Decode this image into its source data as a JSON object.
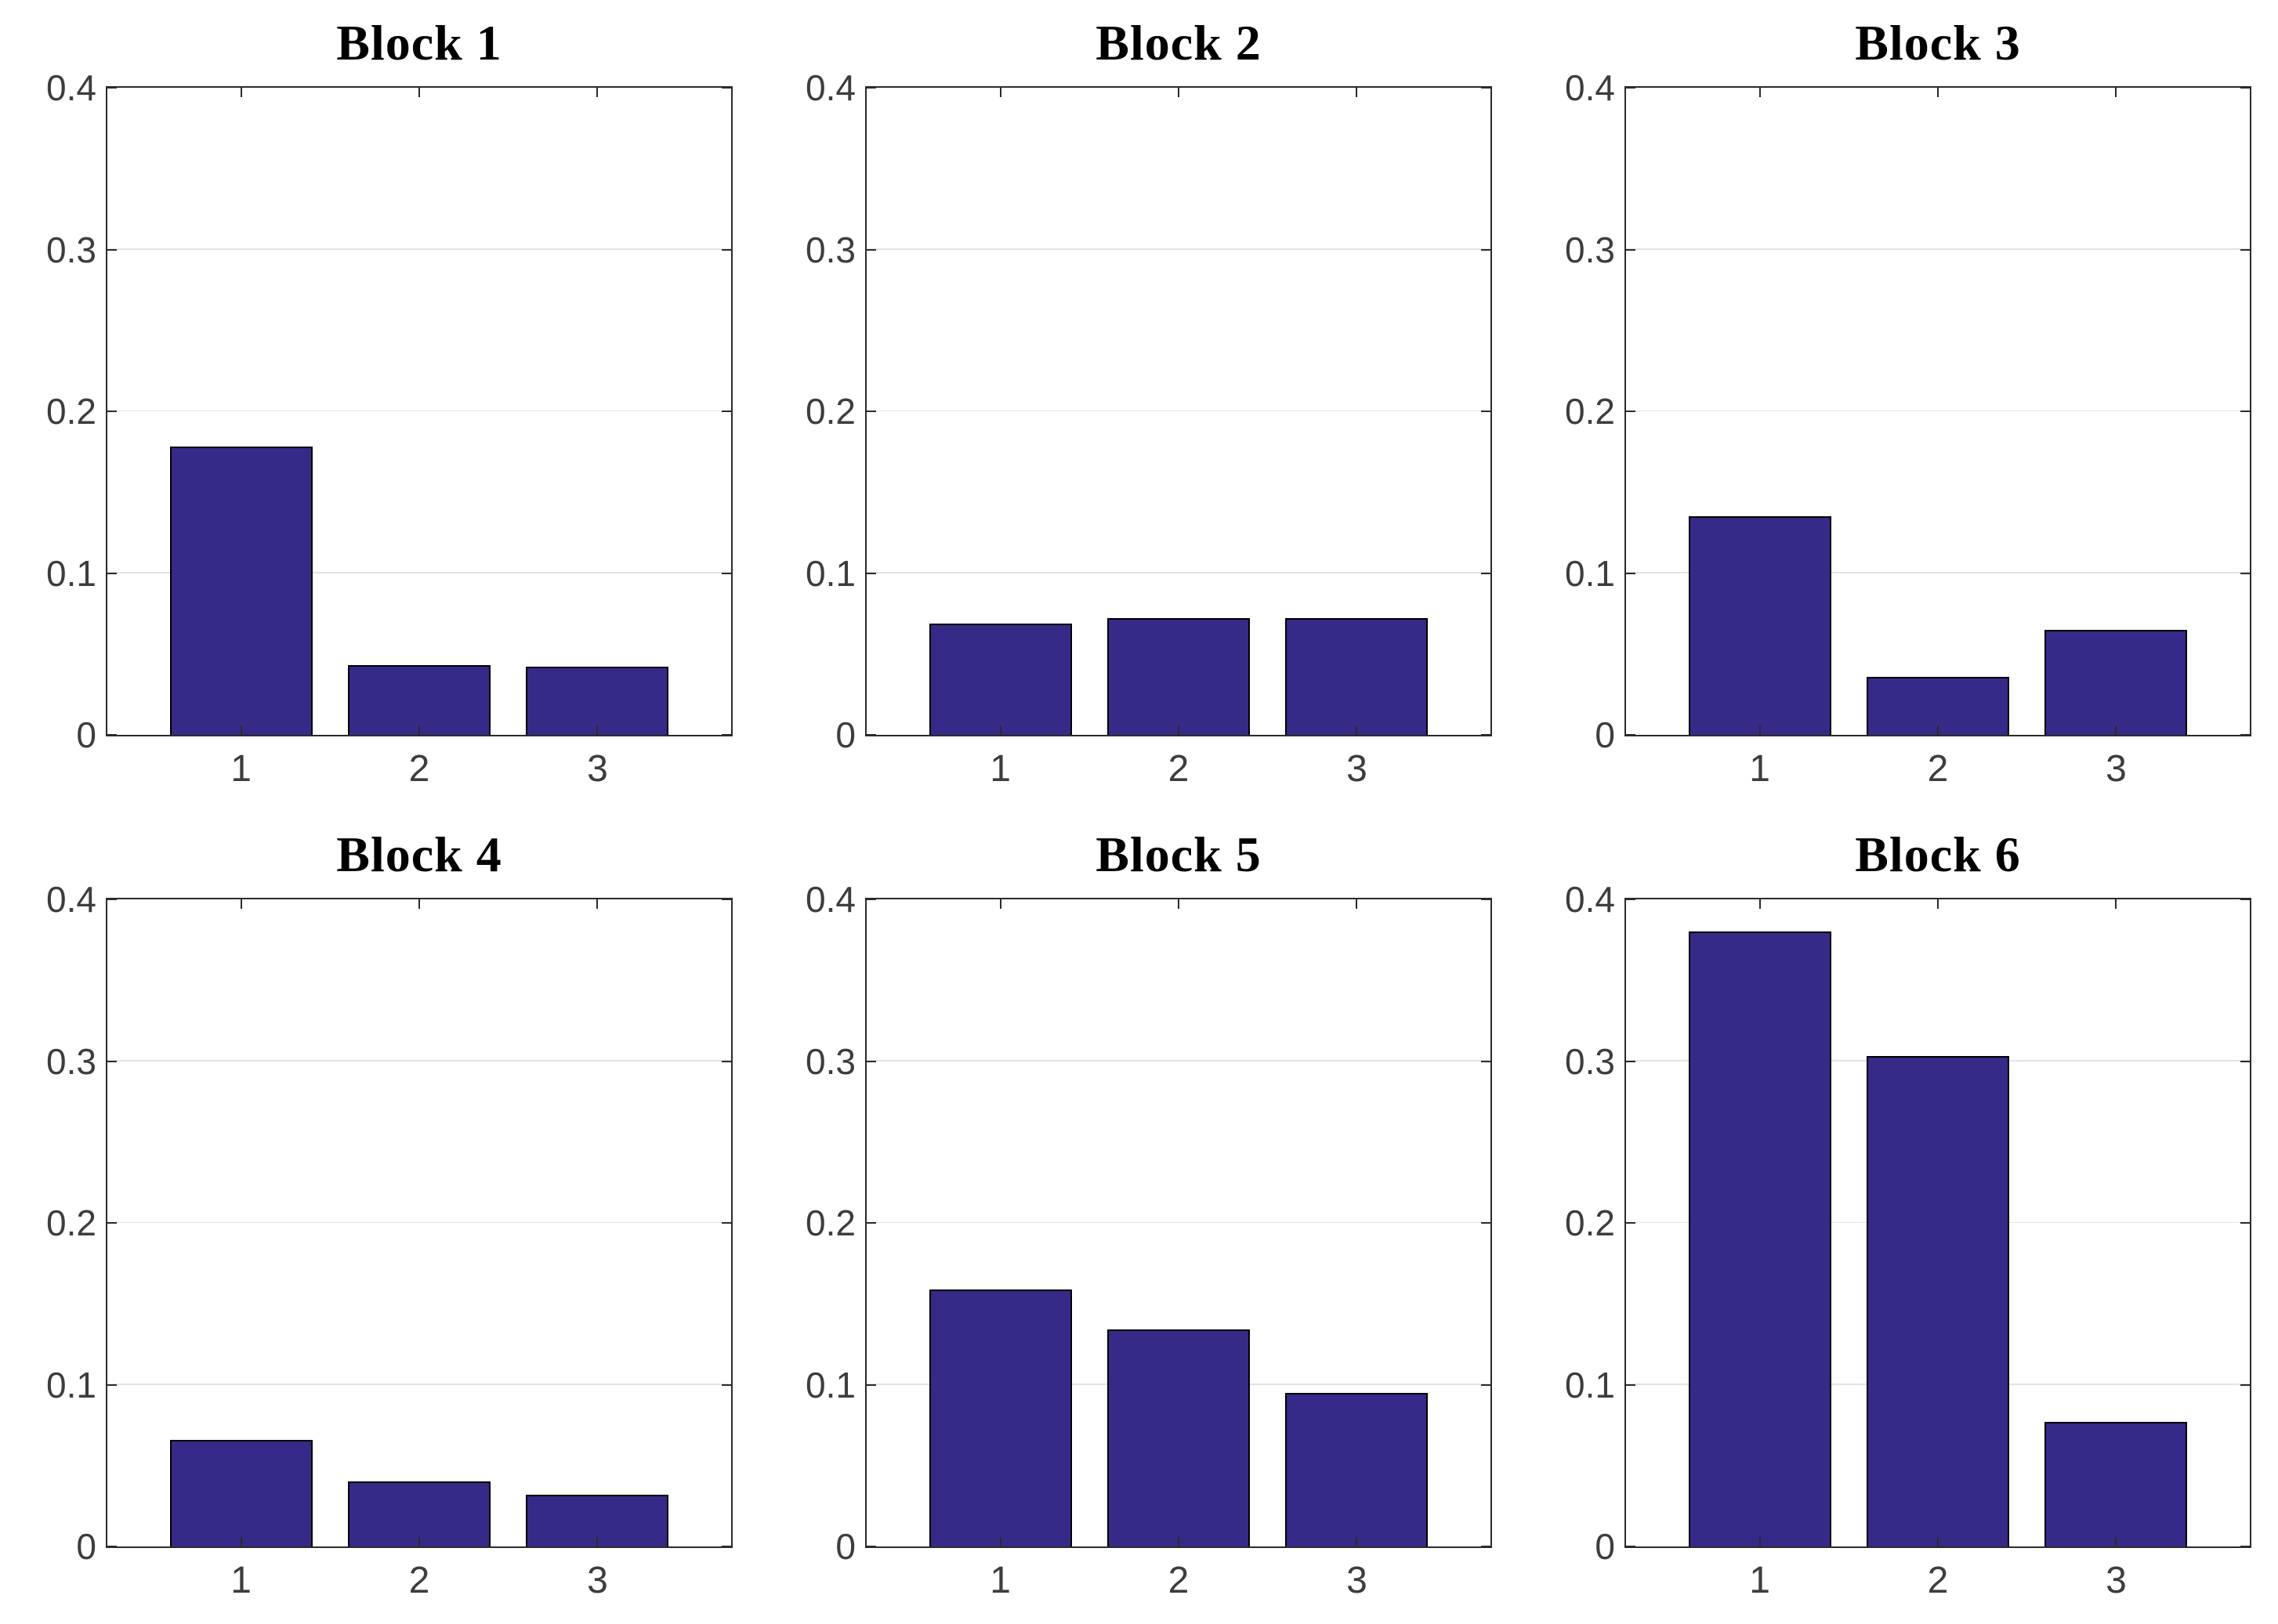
{
  "figure": {
    "background": "#ffffff",
    "rows": 2,
    "cols": 3
  },
  "colors": {
    "bar_fill": "#352a87",
    "bar_edge": "#000000",
    "gridline": "#e3e3e3",
    "axis_box": "#2b2b2b",
    "tick_label": "#3d3d3d",
    "title": "#000000"
  },
  "chart_data": [
    {
      "type": "bar",
      "title": "Block 1",
      "categories": [
        "1",
        "2",
        "3"
      ],
      "values": [
        0.178,
        0.043,
        0.042
      ],
      "xlabel": "",
      "ylabel": "",
      "ylim": [
        0,
        0.4
      ],
      "yticks": [
        0,
        0.1,
        0.2,
        0.3,
        0.4
      ],
      "ytick_labels": [
        "0",
        "0.1",
        "0.2",
        "0.3",
        "0.4"
      ],
      "grid": true,
      "legend": "none"
    },
    {
      "type": "bar",
      "title": "Block 2",
      "categories": [
        "1",
        "2",
        "3"
      ],
      "values": [
        0.069,
        0.072,
        0.072
      ],
      "xlabel": "",
      "ylabel": "",
      "ylim": [
        0,
        0.4
      ],
      "yticks": [
        0,
        0.1,
        0.2,
        0.3,
        0.4
      ],
      "ytick_labels": [
        "0",
        "0.1",
        "0.2",
        "0.3",
        "0.4"
      ],
      "grid": true,
      "legend": "none"
    },
    {
      "type": "bar",
      "title": "Block 3",
      "categories": [
        "1",
        "2",
        "3"
      ],
      "values": [
        0.135,
        0.036,
        0.065
      ],
      "xlabel": "",
      "ylabel": "",
      "ylim": [
        0,
        0.4
      ],
      "yticks": [
        0,
        0.1,
        0.2,
        0.3,
        0.4
      ],
      "ytick_labels": [
        "0",
        "0.1",
        "0.2",
        "0.3",
        "0.4"
      ],
      "grid": true,
      "legend": "none"
    },
    {
      "type": "bar",
      "title": "Block 4",
      "categories": [
        "1",
        "2",
        "3"
      ],
      "values": [
        0.066,
        0.04,
        0.032
      ],
      "xlabel": "",
      "ylabel": "",
      "ylim": [
        0,
        0.4
      ],
      "yticks": [
        0,
        0.1,
        0.2,
        0.3,
        0.4
      ],
      "ytick_labels": [
        "0",
        "0.1",
        "0.2",
        "0.3",
        "0.4"
      ],
      "grid": true,
      "legend": "none"
    },
    {
      "type": "bar",
      "title": "Block 5",
      "categories": [
        "1",
        "2",
        "3"
      ],
      "values": [
        0.159,
        0.134,
        0.095
      ],
      "xlabel": "",
      "ylabel": "",
      "ylim": [
        0,
        0.4
      ],
      "yticks": [
        0,
        0.1,
        0.2,
        0.3,
        0.4
      ],
      "ytick_labels": [
        "0",
        "0.1",
        "0.2",
        "0.3",
        "0.4"
      ],
      "grid": true,
      "legend": "none"
    },
    {
      "type": "bar",
      "title": "Block 6",
      "categories": [
        "1",
        "2",
        "3"
      ],
      "values": [
        0.38,
        0.303,
        0.077
      ],
      "xlabel": "",
      "ylabel": "",
      "ylim": [
        0,
        0.4
      ],
      "yticks": [
        0,
        0.1,
        0.2,
        0.3,
        0.4
      ],
      "ytick_labels": [
        "0",
        "0.1",
        "0.2",
        "0.3",
        "0.4"
      ],
      "grid": true,
      "legend": "none"
    }
  ]
}
